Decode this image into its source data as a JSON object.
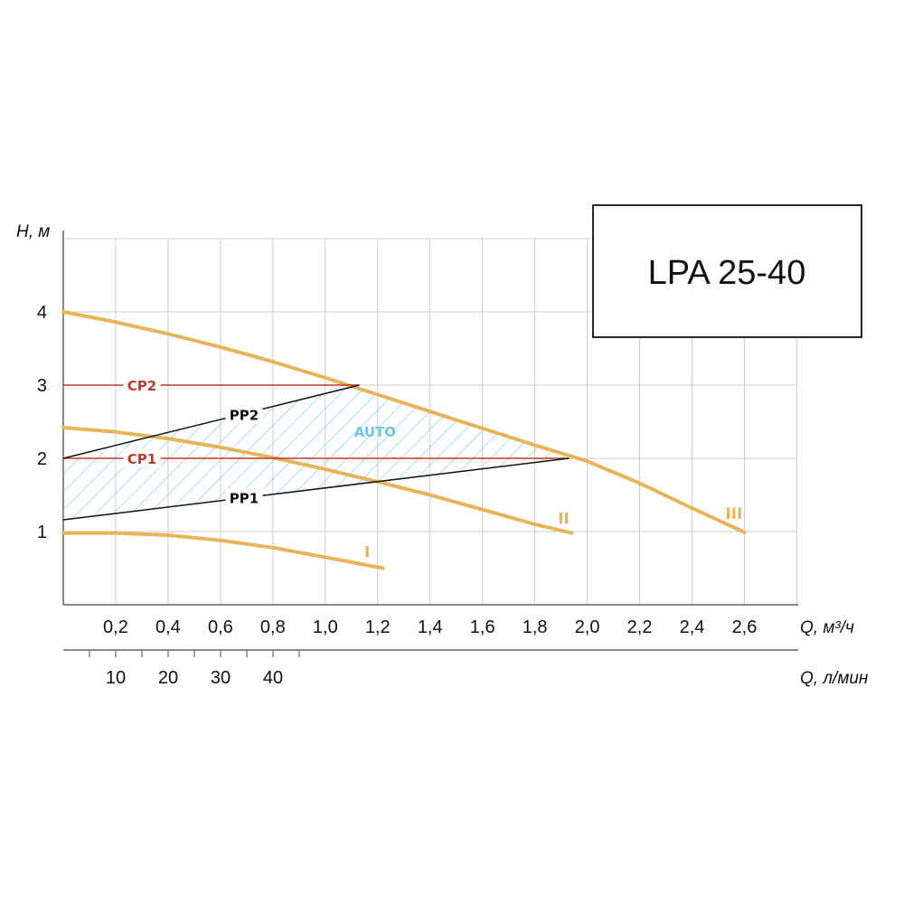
{
  "chart_data": {
    "type": "line",
    "title": "LPA 25-40",
    "ylabel": "H, м",
    "xlabel": "Q, м³/ч",
    "xlabel_secondary": "Q, л/мин",
    "xlim": [
      0,
      2.8
    ],
    "ylim": [
      0,
      5
    ],
    "grid": true,
    "y_ticks": [
      "1",
      "2",
      "3",
      "4"
    ],
    "y_tick_values": [
      1,
      2,
      3,
      4
    ],
    "x_ticks": [
      "0,2",
      "0,4",
      "0,6",
      "0,8",
      "1,0",
      "1,2",
      "1,4",
      "1,6",
      "1,8",
      "2,0",
      "2,2",
      "2,4",
      "2,6"
    ],
    "x_tick_values": [
      0.2,
      0.4,
      0.6,
      0.8,
      1.0,
      1.2,
      1.4,
      1.6,
      1.8,
      2.0,
      2.2,
      2.4,
      2.6
    ],
    "x2_ticks": [
      "10",
      "20",
      "30",
      "40"
    ],
    "x2_tick_values": [
      10,
      20,
      30,
      40
    ],
    "speed_curves": [
      {
        "name": "I",
        "color": "#e8b45a",
        "x": [
          0,
          0.2,
          0.4,
          0.6,
          0.8,
          1.0,
          1.22
        ],
        "y": [
          0.98,
          0.98,
          0.95,
          0.88,
          0.78,
          0.65,
          0.5
        ]
      },
      {
        "name": "II",
        "color": "#e8b45a",
        "x": [
          0,
          0.2,
          0.4,
          0.6,
          0.8,
          1.0,
          1.2,
          1.4,
          1.6,
          1.8,
          1.94
        ],
        "y": [
          2.42,
          2.36,
          2.27,
          2.15,
          2.01,
          1.85,
          1.68,
          1.5,
          1.3,
          1.1,
          0.98
        ]
      },
      {
        "name": "III",
        "color": "#e8b45a",
        "x": [
          0,
          0.2,
          0.4,
          0.6,
          0.8,
          1.0,
          1.2,
          1.4,
          1.6,
          1.8,
          2.0,
          2.2,
          2.4,
          2.6
        ],
        "y": [
          4.0,
          3.86,
          3.7,
          3.52,
          3.32,
          3.1,
          2.87,
          2.64,
          2.41,
          2.18,
          1.96,
          1.66,
          1.32,
          0.99
        ]
      }
    ],
    "modes": [
      {
        "name": "CP2",
        "color": "#c0392b",
        "x": [
          0,
          1.13
        ],
        "y": [
          3.0,
          3.0
        ]
      },
      {
        "name": "CP1",
        "color": "#c0392b",
        "x": [
          0,
          1.93
        ],
        "y": [
          2.0,
          2.0
        ]
      },
      {
        "name": "PP2",
        "color": "#111111",
        "x": [
          0,
          1.13
        ],
        "y": [
          2.0,
          3.0
        ]
      },
      {
        "name": "PP1",
        "color": "#111111",
        "x": [
          0,
          1.93
        ],
        "y": [
          1.16,
          2.0
        ]
      }
    ],
    "auto_region": {
      "name": "AUTO",
      "color": "#6ec6e6",
      "x": [
        0,
        1.13,
        1.2,
        1.4,
        1.6,
        1.8,
        1.93,
        0
      ],
      "y": [
        2.0,
        3.0,
        2.87,
        2.64,
        2.41,
        2.18,
        2.0,
        1.16
      ]
    }
  }
}
